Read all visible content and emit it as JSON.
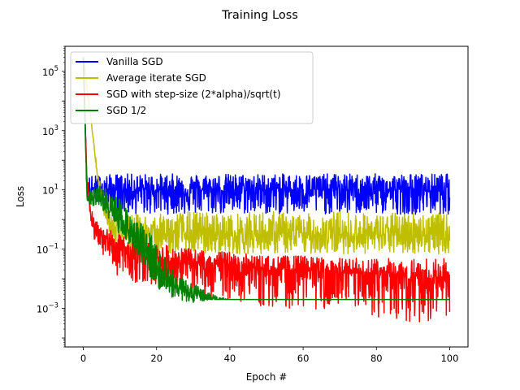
{
  "chart_data": {
    "type": "line",
    "title": "Training Loss",
    "xlabel": "Epoch #",
    "ylabel": "Loss",
    "y_scale": "log",
    "xlim": [
      -5,
      105
    ],
    "ylim": [
      5e-05,
      700000
    ],
    "x_ticks": [
      {
        "value": 0,
        "label": "0"
      },
      {
        "value": 20,
        "label": "20"
      },
      {
        "value": 40,
        "label": "40"
      },
      {
        "value": 60,
        "label": "60"
      },
      {
        "value": 80,
        "label": "80"
      },
      {
        "value": 100,
        "label": "100"
      }
    ],
    "y_ticks": [
      {
        "value": 0.001,
        "base": "10",
        "exp": "−3"
      },
      {
        "value": 0.1,
        "base": "10",
        "exp": "−1"
      },
      {
        "value": 10,
        "base": "10",
        "exp": "1"
      },
      {
        "value": 1000,
        "base": "10",
        "exp": "3"
      },
      {
        "value": 100000,
        "base": "10",
        "exp": "5"
      }
    ],
    "grid": false,
    "legend_position": "top-left",
    "series": [
      {
        "name": "Vanilla SGD",
        "color": "#0000ff",
        "x": [
          0,
          1,
          10,
          20,
          30,
          40,
          50,
          60,
          70,
          80,
          90,
          100
        ],
        "center": [
          300000,
          10,
          10,
          10,
          10,
          10,
          10,
          10,
          10,
          10,
          10,
          10
        ],
        "low": [
          300000,
          5,
          1.5,
          1.5,
          1.5,
          1.5,
          1.5,
          1.5,
          1.5,
          1.5,
          1.5,
          1.5
        ],
        "high": [
          300000,
          30,
          35,
          35,
          35,
          35,
          35,
          35,
          35,
          35,
          35,
          35
        ]
      },
      {
        "name": "Average iterate SGD",
        "color": "#bfbf00",
        "x": [
          0,
          2,
          4,
          6,
          8,
          10,
          15,
          20,
          30,
          40,
          50,
          60,
          70,
          80,
          90,
          100
        ],
        "center": [
          300000,
          3000,
          20,
          2,
          0.5,
          0.3,
          0.3,
          0.3,
          0.3,
          0.3,
          0.3,
          0.3,
          0.3,
          0.3,
          0.3,
          0.3
        ],
        "low": [
          300000,
          3000,
          10,
          0.8,
          0.2,
          0.1,
          0.07,
          0.07,
          0.07,
          0.07,
          0.07,
          0.07,
          0.07,
          0.07,
          0.07,
          0.07
        ],
        "high": [
          300000,
          3000,
          40,
          4,
          1.5,
          1.5,
          1.5,
          1.5,
          2,
          1.5,
          2,
          1.5,
          2,
          1.5,
          2,
          1.5
        ]
      },
      {
        "name": "SGD with step-size (2*alpha)/sqrt(t)",
        "color": "#ff0000",
        "x": [
          0,
          1,
          2,
          3,
          5,
          10,
          20,
          30,
          40,
          50,
          60,
          70,
          80,
          90,
          100
        ],
        "center": [
          300000,
          20,
          2,
          0.5,
          0.3,
          0.1,
          0.05,
          0.03,
          0.03,
          0.02,
          0.02,
          0.015,
          0.015,
          0.01,
          0.01
        ],
        "low": [
          300000,
          10,
          1,
          0.2,
          0.07,
          0.01,
          0.005,
          0.003,
          0.002,
          0.001,
          0.001,
          0.0008,
          0.0005,
          0.0003,
          0.0005
        ],
        "high": [
          300000,
          30,
          4,
          1,
          0.6,
          0.3,
          0.15,
          0.1,
          0.08,
          0.06,
          0.06,
          0.05,
          0.05,
          0.05,
          0.05
        ]
      },
      {
        "name": "SGD 1/2",
        "color": "#008000",
        "x": [
          0,
          1,
          5,
          10,
          15,
          20,
          25,
          30,
          35,
          40,
          45,
          100
        ],
        "center": [
          300000,
          5,
          5,
          1,
          0.15,
          0.03,
          0.005,
          0.003,
          0.002,
          0.002,
          0.002,
          0.002
        ],
        "low": [
          300000,
          3,
          2,
          0.3,
          0.05,
          0.005,
          0.002,
          0.0015,
          0.002,
          0.002,
          0.002,
          0.002
        ],
        "high": [
          300000,
          10,
          15,
          5,
          1,
          0.2,
          0.02,
          0.007,
          0.003,
          0.002,
          0.002,
          0.002
        ]
      }
    ]
  }
}
